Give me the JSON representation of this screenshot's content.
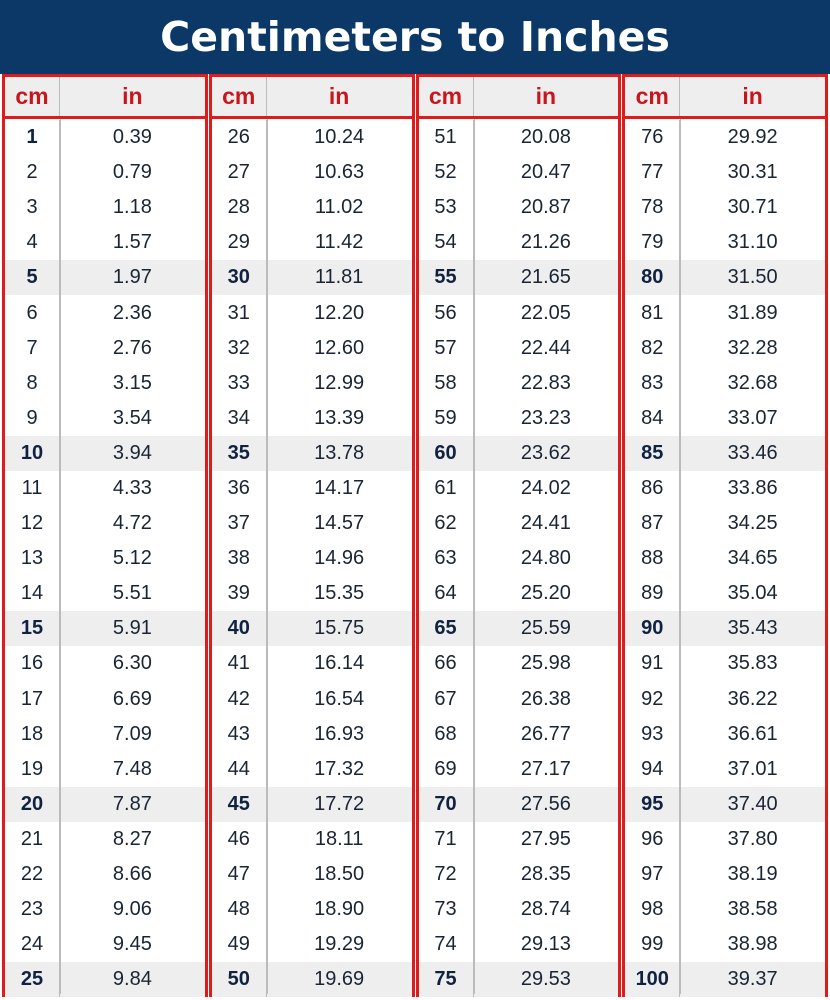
{
  "title": "Centimeters to Inches",
  "header": {
    "cm": "cm",
    "in": "in"
  },
  "colors": {
    "title_bg": "#0b3866",
    "border": "#e01b1b",
    "header_text": "#c8161d",
    "shade": "#eeeeee"
  },
  "columns": [
    [
      [
        "1",
        "0.39"
      ],
      [
        "2",
        "0.79"
      ],
      [
        "3",
        "1.18"
      ],
      [
        "4",
        "1.57"
      ],
      [
        "5",
        "1.97"
      ],
      [
        "6",
        "2.36"
      ],
      [
        "7",
        "2.76"
      ],
      [
        "8",
        "3.15"
      ],
      [
        "9",
        "3.54"
      ],
      [
        "10",
        "3.94"
      ],
      [
        "11",
        "4.33"
      ],
      [
        "12",
        "4.72"
      ],
      [
        "13",
        "5.12"
      ],
      [
        "14",
        "5.51"
      ],
      [
        "15",
        "5.91"
      ],
      [
        "16",
        "6.30"
      ],
      [
        "17",
        "6.69"
      ],
      [
        "18",
        "7.09"
      ],
      [
        "19",
        "7.48"
      ],
      [
        "20",
        "7.87"
      ],
      [
        "21",
        "8.27"
      ],
      [
        "22",
        "8.66"
      ],
      [
        "23",
        "9.06"
      ],
      [
        "24",
        "9.45"
      ],
      [
        "25",
        "9.84"
      ]
    ],
    [
      [
        "26",
        "10.24"
      ],
      [
        "27",
        "10.63"
      ],
      [
        "28",
        "11.02"
      ],
      [
        "29",
        "11.42"
      ],
      [
        "30",
        "11.81"
      ],
      [
        "31",
        "12.20"
      ],
      [
        "32",
        "12.60"
      ],
      [
        "33",
        "12.99"
      ],
      [
        "34",
        "13.39"
      ],
      [
        "35",
        "13.78"
      ],
      [
        "36",
        "14.17"
      ],
      [
        "37",
        "14.57"
      ],
      [
        "38",
        "14.96"
      ],
      [
        "39",
        "15.35"
      ],
      [
        "40",
        "15.75"
      ],
      [
        "41",
        "16.14"
      ],
      [
        "42",
        "16.54"
      ],
      [
        "43",
        "16.93"
      ],
      [
        "44",
        "17.32"
      ],
      [
        "45",
        "17.72"
      ],
      [
        "46",
        "18.11"
      ],
      [
        "47",
        "18.50"
      ],
      [
        "48",
        "18.90"
      ],
      [
        "49",
        "19.29"
      ],
      [
        "50",
        "19.69"
      ]
    ],
    [
      [
        "51",
        "20.08"
      ],
      [
        "52",
        "20.47"
      ],
      [
        "53",
        "20.87"
      ],
      [
        "54",
        "21.26"
      ],
      [
        "55",
        "21.65"
      ],
      [
        "56",
        "22.05"
      ],
      [
        "57",
        "22.44"
      ],
      [
        "58",
        "22.83"
      ],
      [
        "59",
        "23.23"
      ],
      [
        "60",
        "23.62"
      ],
      [
        "61",
        "24.02"
      ],
      [
        "62",
        "24.41"
      ],
      [
        "63",
        "24.80"
      ],
      [
        "64",
        "25.20"
      ],
      [
        "65",
        "25.59"
      ],
      [
        "66",
        "25.98"
      ],
      [
        "67",
        "26.38"
      ],
      [
        "68",
        "26.77"
      ],
      [
        "69",
        "27.17"
      ],
      [
        "70",
        "27.56"
      ],
      [
        "71",
        "27.95"
      ],
      [
        "72",
        "28.35"
      ],
      [
        "73",
        "28.74"
      ],
      [
        "74",
        "29.13"
      ],
      [
        "75",
        "29.53"
      ]
    ],
    [
      [
        "76",
        "29.92"
      ],
      [
        "77",
        "30.31"
      ],
      [
        "78",
        "30.71"
      ],
      [
        "79",
        "31.10"
      ],
      [
        "80",
        "31.50"
      ],
      [
        "81",
        "31.89"
      ],
      [
        "82",
        "32.28"
      ],
      [
        "83",
        "32.68"
      ],
      [
        "84",
        "33.07"
      ],
      [
        "85",
        "33.46"
      ],
      [
        "86",
        "33.86"
      ],
      [
        "87",
        "34.25"
      ],
      [
        "88",
        "34.65"
      ],
      [
        "89",
        "35.04"
      ],
      [
        "90",
        "35.43"
      ],
      [
        "91",
        "35.83"
      ],
      [
        "92",
        "36.22"
      ],
      [
        "93",
        "36.61"
      ],
      [
        "94",
        "37.01"
      ],
      [
        "95",
        "37.40"
      ],
      [
        "96",
        "37.80"
      ],
      [
        "97",
        "38.19"
      ],
      [
        "98",
        "38.58"
      ],
      [
        "99",
        "38.98"
      ],
      [
        "100",
        "39.37"
      ]
    ]
  ]
}
